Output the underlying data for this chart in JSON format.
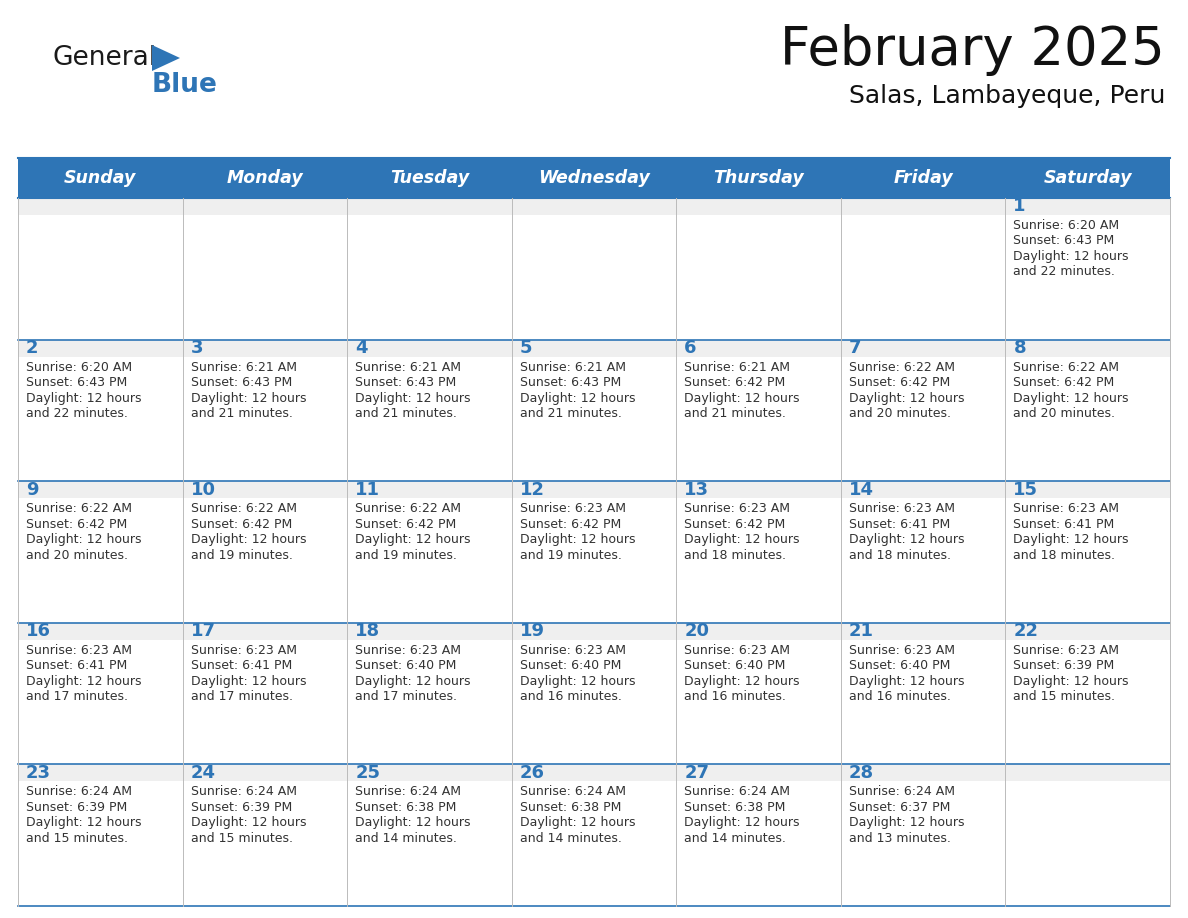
{
  "title": "February 2025",
  "subtitle": "Salas, Lambayeque, Peru",
  "header_bg": "#2E75B6",
  "header_text_color": "#FFFFFF",
  "cell_bg_light": "#EFEFEF",
  "cell_bg_white": "#FFFFFF",
  "day_number_color": "#2E75B6",
  "text_color": "#333333",
  "line_color": "#2E75B6",
  "inner_line_color": "#BBBBBB",
  "days_of_week": [
    "Sunday",
    "Monday",
    "Tuesday",
    "Wednesday",
    "Thursday",
    "Friday",
    "Saturday"
  ],
  "weeks": [
    [
      null,
      null,
      null,
      null,
      null,
      null,
      1
    ],
    [
      2,
      3,
      4,
      5,
      6,
      7,
      8
    ],
    [
      9,
      10,
      11,
      12,
      13,
      14,
      15
    ],
    [
      16,
      17,
      18,
      19,
      20,
      21,
      22
    ],
    [
      23,
      24,
      25,
      26,
      27,
      28,
      null
    ]
  ],
  "cell_data": {
    "1": {
      "sunrise": "6:20 AM",
      "sunset": "6:43 PM",
      "hours": 12,
      "minutes": 22
    },
    "2": {
      "sunrise": "6:20 AM",
      "sunset": "6:43 PM",
      "hours": 12,
      "minutes": 22
    },
    "3": {
      "sunrise": "6:21 AM",
      "sunset": "6:43 PM",
      "hours": 12,
      "minutes": 21
    },
    "4": {
      "sunrise": "6:21 AM",
      "sunset": "6:43 PM",
      "hours": 12,
      "minutes": 21
    },
    "5": {
      "sunrise": "6:21 AM",
      "sunset": "6:43 PM",
      "hours": 12,
      "minutes": 21
    },
    "6": {
      "sunrise": "6:21 AM",
      "sunset": "6:42 PM",
      "hours": 12,
      "minutes": 21
    },
    "7": {
      "sunrise": "6:22 AM",
      "sunset": "6:42 PM",
      "hours": 12,
      "minutes": 20
    },
    "8": {
      "sunrise": "6:22 AM",
      "sunset": "6:42 PM",
      "hours": 12,
      "minutes": 20
    },
    "9": {
      "sunrise": "6:22 AM",
      "sunset": "6:42 PM",
      "hours": 12,
      "minutes": 20
    },
    "10": {
      "sunrise": "6:22 AM",
      "sunset": "6:42 PM",
      "hours": 12,
      "minutes": 19
    },
    "11": {
      "sunrise": "6:22 AM",
      "sunset": "6:42 PM",
      "hours": 12,
      "minutes": 19
    },
    "12": {
      "sunrise": "6:23 AM",
      "sunset": "6:42 PM",
      "hours": 12,
      "minutes": 19
    },
    "13": {
      "sunrise": "6:23 AM",
      "sunset": "6:42 PM",
      "hours": 12,
      "minutes": 18
    },
    "14": {
      "sunrise": "6:23 AM",
      "sunset": "6:41 PM",
      "hours": 12,
      "minutes": 18
    },
    "15": {
      "sunrise": "6:23 AM",
      "sunset": "6:41 PM",
      "hours": 12,
      "minutes": 18
    },
    "16": {
      "sunrise": "6:23 AM",
      "sunset": "6:41 PM",
      "hours": 12,
      "minutes": 17
    },
    "17": {
      "sunrise": "6:23 AM",
      "sunset": "6:41 PM",
      "hours": 12,
      "minutes": 17
    },
    "18": {
      "sunrise": "6:23 AM",
      "sunset": "6:40 PM",
      "hours": 12,
      "minutes": 17
    },
    "19": {
      "sunrise": "6:23 AM",
      "sunset": "6:40 PM",
      "hours": 12,
      "minutes": 16
    },
    "20": {
      "sunrise": "6:23 AM",
      "sunset": "6:40 PM",
      "hours": 12,
      "minutes": 16
    },
    "21": {
      "sunrise": "6:23 AM",
      "sunset": "6:40 PM",
      "hours": 12,
      "minutes": 16
    },
    "22": {
      "sunrise": "6:23 AM",
      "sunset": "6:39 PM",
      "hours": 12,
      "minutes": 15
    },
    "23": {
      "sunrise": "6:24 AM",
      "sunset": "6:39 PM",
      "hours": 12,
      "minutes": 15
    },
    "24": {
      "sunrise": "6:24 AM",
      "sunset": "6:39 PM",
      "hours": 12,
      "minutes": 15
    },
    "25": {
      "sunrise": "6:24 AM",
      "sunset": "6:38 PM",
      "hours": 12,
      "minutes": 14
    },
    "26": {
      "sunrise": "6:24 AM",
      "sunset": "6:38 PM",
      "hours": 12,
      "minutes": 14
    },
    "27": {
      "sunrise": "6:24 AM",
      "sunset": "6:38 PM",
      "hours": 12,
      "minutes": 14
    },
    "28": {
      "sunrise": "6:24 AM",
      "sunset": "6:37 PM",
      "hours": 12,
      "minutes": 13
    }
  },
  "logo_text1": "General",
  "logo_text2": "Blue",
  "logo_color1": "#1a1a1a",
  "logo_color2": "#2E75B6",
  "logo_triangle_color": "#2E75B6"
}
